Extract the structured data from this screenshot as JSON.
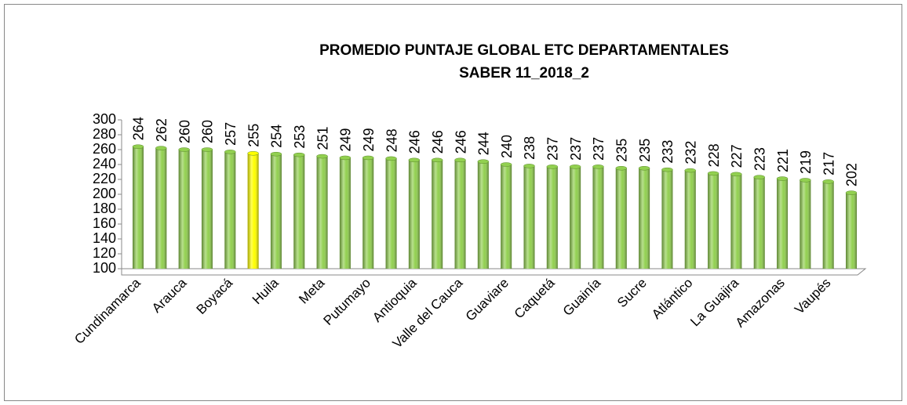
{
  "chart_data": {
    "type": "bar",
    "title": "PROMEDIO PUNTAJE GLOBAL ETC DEPARTAMENTALES",
    "subtitle": "SABER 11_2018_2",
    "categories": [
      "Cundinamarca",
      null,
      "Arauca",
      null,
      "Boyacá",
      null,
      "Huila",
      null,
      "Meta",
      null,
      "Putumayo",
      null,
      "Antioquia",
      null,
      "Valle del Cauca",
      null,
      "Guaviare",
      null,
      "Caquetá",
      null,
      "Guainía",
      null,
      "Sucre",
      null,
      "Atlántico",
      null,
      "La Guajira",
      null,
      "Amazonas",
      null,
      "Vaupés",
      null
    ],
    "values": [
      264,
      262,
      260,
      260,
      257,
      255,
      254,
      253,
      251,
      249,
      249,
      248,
      246,
      246,
      246,
      244,
      240,
      238,
      237,
      237,
      237,
      235,
      235,
      233,
      232,
      228,
      227,
      223,
      221,
      219,
      217,
      202
    ],
    "colors": [
      "#92d050",
      "#92d050",
      "#92d050",
      "#92d050",
      "#92d050",
      "#ffff00",
      "#92d050",
      "#92d050",
      "#92d050",
      "#92d050",
      "#92d050",
      "#92d050",
      "#92d050",
      "#92d050",
      "#92d050",
      "#92d050",
      "#92d050",
      "#92d050",
      "#92d050",
      "#92d050",
      "#92d050",
      "#92d050",
      "#92d050",
      "#92d050",
      "#92d050",
      "#92d050",
      "#92d050",
      "#92d050",
      "#92d050",
      "#92d050",
      "#92d050",
      "#92d050"
    ],
    "ylim": [
      100,
      300
    ],
    "yticks": [
      100,
      120,
      140,
      160,
      180,
      200,
      220,
      240,
      260,
      280,
      300
    ]
  }
}
